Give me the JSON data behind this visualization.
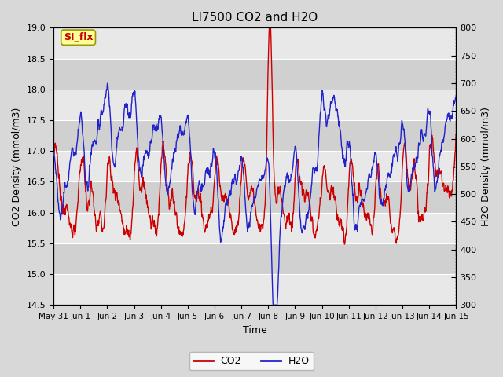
{
  "title": "LI7500 CO2 and H2O",
  "xlabel": "Time",
  "ylabel_left": "CO2 Density (mmol/m3)",
  "ylabel_right": "H2O Density (mmol/m3)",
  "ylim_left": [
    14.5,
    19.0
  ],
  "ylim_right": [
    300,
    800
  ],
  "yticks_left": [
    14.5,
    15.0,
    15.5,
    16.0,
    16.5,
    17.0,
    17.5,
    18.0,
    18.5,
    19.0
  ],
  "yticks_right": [
    300,
    350,
    400,
    450,
    500,
    550,
    600,
    650,
    700,
    750,
    800
  ],
  "xtick_labels": [
    "May 31",
    "Jun 1",
    "Jun 2",
    "Jun 3",
    "Jun 4",
    "Jun 5",
    "Jun 6",
    "Jun 7",
    "Jun 8",
    "Jun 9",
    "Jun 10",
    "Jun 11",
    "Jun 12",
    "Jun 13",
    "Jun 14",
    "Jun 15"
  ],
  "fig_bg_color": "#d8d8d8",
  "plot_bg_color": "#e8e8e8",
  "band_light_color": "#d0d0d0",
  "co2_color": "#cc0000",
  "h2o_color": "#2222cc",
  "line_width": 1.0,
  "annotation_text": "SI_flx",
  "annotation_bg": "#ffff99",
  "annotation_border": "#999900",
  "annotation_text_color": "#cc0000",
  "seed": 12345,
  "n_points": 1440,
  "legend_labels": [
    "CO2",
    "H2O"
  ]
}
